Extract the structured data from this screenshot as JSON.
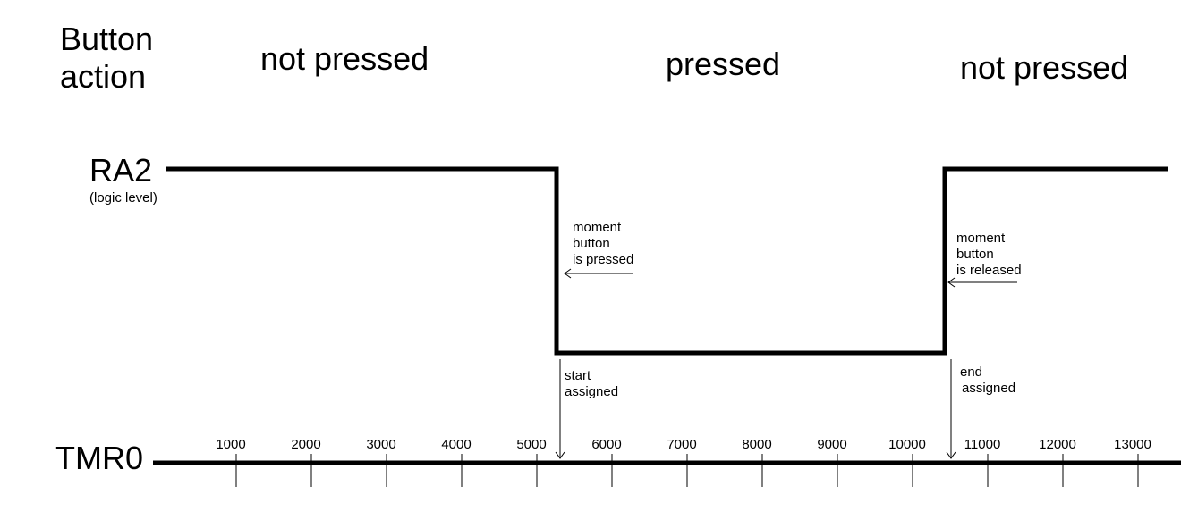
{
  "labels": {
    "button_action_line1": "Button",
    "button_action_line2": "action",
    "ra2": "RA2",
    "logic_level": "(logic level)",
    "tmr0": "TMR0"
  },
  "states": {
    "not_pressed_1": "not pressed",
    "pressed": "pressed",
    "not_pressed_2": "not pressed"
  },
  "annotations": {
    "pressed_note": [
      "moment",
      "button",
      "is pressed"
    ],
    "released_note": [
      "moment",
      "button",
      "is released"
    ],
    "start_note": [
      "start",
      "assigned"
    ],
    "end_note": [
      "end",
      "assigned"
    ]
  },
  "timeline": {
    "ticks": [
      "1000",
      "2000",
      "3000",
      "4000",
      "5000",
      "6000",
      "7000",
      "8000",
      "9000",
      "10000",
      "11000",
      "12000",
      "13000"
    ],
    "press_at": 5300,
    "release_at": 10450
  }
}
